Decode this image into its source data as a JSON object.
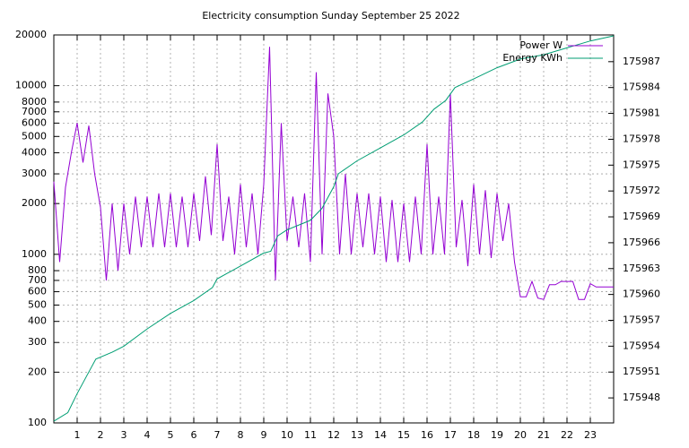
{
  "chart_data": {
    "type": "line",
    "title": "Electricity consumption Sunday September 25 2022",
    "xlim": [
      0,
      24
    ],
    "xticks": [
      1,
      2,
      3,
      4,
      5,
      6,
      7,
      8,
      9,
      10,
      11,
      12,
      13,
      14,
      15,
      16,
      17,
      18,
      19,
      20,
      21,
      22,
      23
    ],
    "ylim": [
      100,
      20000
    ],
    "log_y": true,
    "yticks": [
      100,
      200,
      300,
      400,
      500,
      600,
      700,
      800,
      1000,
      2000,
      3000,
      4000,
      5000,
      6000,
      7000,
      8000,
      10000,
      20000
    ],
    "y2lim": [
      175945.1,
      175990.1
    ],
    "y2ticks": [
      175948,
      175951,
      175954,
      175957,
      175960,
      175963,
      175966,
      175969,
      175972,
      175975,
      175978,
      175981,
      175984,
      175987
    ],
    "grid": true,
    "legend": "top-right",
    "series": [
      {
        "name": "Power W",
        "color": "#9400d3",
        "x": [
          0,
          0.25,
          0.5,
          0.75,
          1,
          1.25,
          1.5,
          1.75,
          2,
          2.25,
          2.5,
          2.75,
          3,
          3.25,
          3.5,
          3.75,
          4,
          4.25,
          4.5,
          4.75,
          5,
          5.25,
          5.5,
          5.75,
          6,
          6.25,
          6.5,
          6.75,
          7,
          7.25,
          7.5,
          7.75,
          8,
          8.25,
          8.5,
          8.75,
          9,
          9.25,
          9.5,
          9.75,
          10,
          10.25,
          10.5,
          10.75,
          11,
          11.25,
          11.5,
          11.75,
          12,
          12.25,
          12.5,
          12.75,
          13,
          13.25,
          13.5,
          13.75,
          14,
          14.25,
          14.5,
          14.75,
          15,
          15.25,
          15.5,
          15.75,
          16,
          16.25,
          16.5,
          16.75,
          17,
          17.25,
          17.5,
          17.75,
          18,
          18.25,
          18.5,
          18.75,
          19,
          19.25,
          19.5,
          19.75,
          20,
          20.25,
          20.5,
          20.75,
          21,
          21.25,
          21.5,
          21.75,
          22,
          22.25,
          22.5,
          22.75,
          23,
          23.25,
          23.5,
          23.75,
          24
        ],
        "values": [
          2700,
          900,
          2500,
          4000,
          6000,
          3500,
          5800,
          3000,
          1900,
          700,
          2000,
          800,
          2000,
          1000,
          2200,
          1100,
          2200,
          1100,
          2300,
          1100,
          2300,
          1100,
          2200,
          1100,
          2300,
          1200,
          2900,
          1300,
          4500,
          1200,
          2200,
          1000,
          2600,
          1100,
          2300,
          1000,
          2600,
          17000,
          700,
          6000,
          1200,
          2200,
          1100,
          2300,
          900,
          12000,
          1000,
          9000,
          5000,
          1000,
          3000,
          1000,
          2300,
          1100,
          2300,
          1000,
          2200,
          900,
          2100,
          900,
          2000,
          900,
          2200,
          1000,
          4500,
          1000,
          2200,
          1000,
          9000,
          1100,
          2100,
          850,
          2600,
          1000,
          2400,
          950,
          2300,
          1200,
          2000,
          900,
          560,
          560,
          690,
          550,
          540,
          660,
          660,
          690,
          690,
          690,
          540,
          540,
          670,
          640,
          640,
          640,
          640
        ]
      },
      {
        "name": "Energy KWh",
        "color": "#009e73",
        "axis": "y2",
        "x": [
          0,
          0.6,
          1,
          1.5,
          1.8,
          2.5,
          3,
          4,
          5,
          6,
          6.8,
          7,
          8,
          9,
          9.3,
          9.6,
          10,
          11,
          11.5,
          12,
          12.2,
          13,
          14,
          15,
          15.8,
          16.3,
          16.8,
          17.2,
          18,
          19,
          20,
          21,
          22,
          23,
          24
        ],
        "values": [
          175945.3,
          175946.3,
          175948.5,
          175951,
          175952.5,
          175953.3,
          175954,
          175956,
          175957.8,
          175959.3,
          175960.8,
          175961.8,
          175963.3,
          175964.8,
          175965,
          175966.8,
          175967.5,
          175968.6,
          175970,
          175972.5,
          175974,
          175975.5,
          175977,
          175978.5,
          175980,
          175981.5,
          175982.5,
          175984,
          175985,
          175986.3,
          175987.3,
          175987.8,
          175988.6,
          175989.4,
          175990
        ]
      }
    ]
  }
}
